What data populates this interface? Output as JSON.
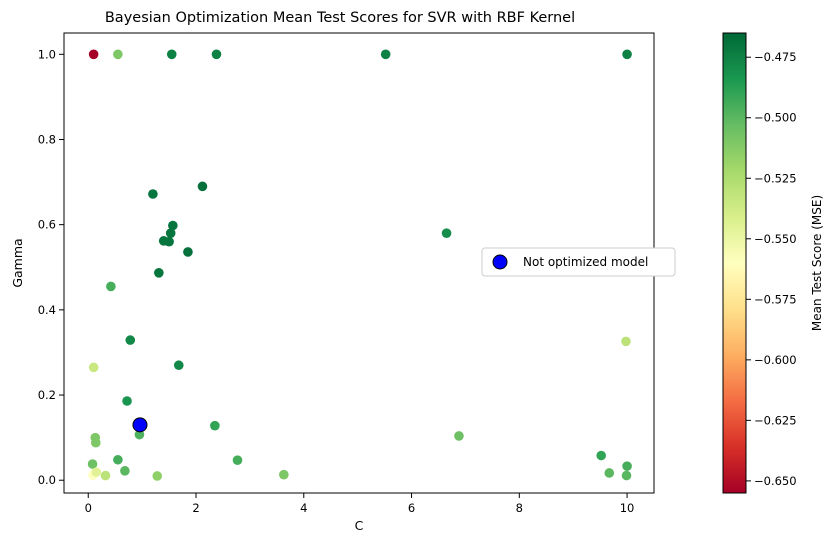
{
  "chart_data": {
    "type": "scatter",
    "title": "Bayesian Optimization Mean Test Scores for SVR with RBF Kernel",
    "xlabel": "C",
    "ylabel": "Gamma",
    "xlim": [
      -0.45,
      10.5
    ],
    "ylim": [
      -0.03,
      1.05
    ],
    "xticks": [
      0,
      2,
      4,
      6,
      8,
      10
    ],
    "xtick_labels": [
      "0",
      "2",
      "4",
      "6",
      "8",
      "10"
    ],
    "yticks": [
      0.0,
      0.2,
      0.4,
      0.6,
      0.8,
      1.0
    ],
    "ytick_labels": [
      "0.0",
      "0.2",
      "0.4",
      "0.6",
      "0.8",
      "1.0"
    ],
    "grid": false,
    "legend_position": "center-right",
    "colormap": "RdYlGn",
    "colorbar": {
      "label": "Mean Test Score (MSE)",
      "range": [
        -0.655,
        -0.465
      ],
      "ticks": [
        -0.475,
        -0.5,
        -0.525,
        -0.55,
        -0.575,
        -0.6,
        -0.625,
        -0.65
      ],
      "tick_labels": [
        "−0.475",
        "−0.500",
        "−0.525",
        "−0.550",
        "−0.575",
        "−0.600",
        "−0.625",
        "−0.650"
      ]
    },
    "points": [
      {
        "x": 0.1,
        "y": 1.0,
        "score": -0.655
      },
      {
        "x": 0.55,
        "y": 1.0,
        "score": -0.51
      },
      {
        "x": 1.55,
        "y": 1.0,
        "score": -0.475
      },
      {
        "x": 2.38,
        "y": 1.0,
        "score": -0.475
      },
      {
        "x": 5.52,
        "y": 1.0,
        "score": -0.475
      },
      {
        "x": 10.0,
        "y": 1.0,
        "score": -0.475
      },
      {
        "x": 2.12,
        "y": 0.69,
        "score": -0.468
      },
      {
        "x": 1.2,
        "y": 0.672,
        "score": -0.47
      },
      {
        "x": 1.57,
        "y": 0.598,
        "score": -0.47
      },
      {
        "x": 1.53,
        "y": 0.58,
        "score": -0.47
      },
      {
        "x": 1.85,
        "y": 0.536,
        "score": -0.468
      },
      {
        "x": 1.4,
        "y": 0.562,
        "score": -0.47
      },
      {
        "x": 1.5,
        "y": 0.56,
        "score": -0.47
      },
      {
        "x": 1.31,
        "y": 0.487,
        "score": -0.47
      },
      {
        "x": 6.65,
        "y": 0.58,
        "score": -0.48
      },
      {
        "x": 0.42,
        "y": 0.455,
        "score": -0.495
      },
      {
        "x": 0.78,
        "y": 0.329,
        "score": -0.478
      },
      {
        "x": 1.68,
        "y": 0.27,
        "score": -0.478
      },
      {
        "x": 0.1,
        "y": 0.265,
        "score": -0.535
      },
      {
        "x": 9.98,
        "y": 0.326,
        "score": -0.53
      },
      {
        "x": 0.72,
        "y": 0.186,
        "score": -0.483
      },
      {
        "x": 2.35,
        "y": 0.128,
        "score": -0.49
      },
      {
        "x": 0.95,
        "y": 0.107,
        "score": -0.497
      },
      {
        "x": 0.13,
        "y": 0.1,
        "score": -0.51
      },
      {
        "x": 0.14,
        "y": 0.088,
        "score": -0.51
      },
      {
        "x": 6.88,
        "y": 0.104,
        "score": -0.505
      },
      {
        "x": 9.52,
        "y": 0.058,
        "score": -0.49
      },
      {
        "x": 10.0,
        "y": 0.033,
        "score": -0.495
      },
      {
        "x": 0.55,
        "y": 0.048,
        "score": -0.495
      },
      {
        "x": 2.77,
        "y": 0.047,
        "score": -0.495
      },
      {
        "x": 0.08,
        "y": 0.038,
        "score": -0.505
      },
      {
        "x": 0.68,
        "y": 0.022,
        "score": -0.5
      },
      {
        "x": 3.63,
        "y": 0.013,
        "score": -0.51
      },
      {
        "x": 1.28,
        "y": 0.01,
        "score": -0.515
      },
      {
        "x": 0.32,
        "y": 0.011,
        "score": -0.53
      },
      {
        "x": 9.67,
        "y": 0.017,
        "score": -0.5
      },
      {
        "x": 9.99,
        "y": 0.011,
        "score": -0.5
      },
      {
        "x": 0.09,
        "y": 0.012,
        "score": -0.56
      },
      {
        "x": 0.15,
        "y": 0.019,
        "score": -0.545
      }
    ],
    "highlight": {
      "label": "Not optimized model",
      "x": 0.96,
      "y": 0.13,
      "color": "#0000ff"
    }
  }
}
